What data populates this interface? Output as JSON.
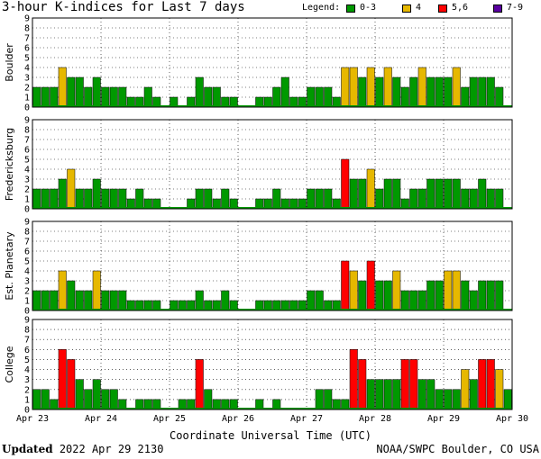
{
  "title": "3-hour K-indices for Last 7 days",
  "legend": {
    "label": "Legend:",
    "items": [
      {
        "text": "0-3",
        "color": "#009900"
      },
      {
        "text": "4",
        "color": "#e6b800"
      },
      {
        "text": "5,6",
        "color": "#ff0000"
      },
      {
        "text": "7-9",
        "color": "#5a00a0"
      }
    ]
  },
  "footer": {
    "updated_label": "Updated",
    "updated_value": "2022 Apr 29 2130",
    "source": "NOAA/SWPC Boulder, CO USA"
  },
  "chart_data": {
    "type": "bar",
    "xlabel": "Coordinate Universal Time (UTC)",
    "x_ticks": [
      "Apr 23",
      "Apr 24",
      "Apr 25",
      "Apr 26",
      "Apr 27",
      "Apr 28",
      "Apr 29",
      "Apr 30"
    ],
    "ylim": [
      0,
      9
    ],
    "y_ticks": [
      0,
      1,
      2,
      3,
      4,
      5,
      6,
      7,
      8,
      9
    ],
    "bins_per_day": 8,
    "color_scale": [
      {
        "range": [
          0,
          3
        ],
        "color": "#009900"
      },
      {
        "range": [
          4,
          4
        ],
        "color": "#e6b800"
      },
      {
        "range": [
          5,
          6
        ],
        "color": "#ff0000"
      },
      {
        "range": [
          7,
          9
        ],
        "color": "#5a00a0"
      }
    ],
    "panels": [
      {
        "name": "Boulder",
        "values": [
          2,
          2,
          2,
          4,
          3,
          3,
          2,
          3,
          2,
          2,
          2,
          1,
          1,
          2,
          1,
          0,
          1,
          0,
          1,
          3,
          2,
          2,
          1,
          1,
          0,
          0,
          1,
          1,
          2,
          3,
          1,
          1,
          2,
          2,
          2,
          1,
          4,
          4,
          3,
          4,
          3,
          4,
          3,
          2,
          3,
          4,
          3,
          3,
          3,
          4,
          2,
          3,
          3,
          3,
          2,
          0
        ]
      },
      {
        "name": "Fredericksburg",
        "values": [
          2,
          2,
          2,
          3,
          4,
          2,
          2,
          3,
          2,
          2,
          2,
          1,
          2,
          1,
          1,
          0,
          0,
          0,
          1,
          2,
          2,
          1,
          2,
          1,
          0,
          0,
          1,
          1,
          2,
          1,
          1,
          1,
          2,
          2,
          2,
          1,
          5,
          3,
          3,
          4,
          2,
          3,
          3,
          1,
          2,
          2,
          3,
          3,
          3,
          3,
          2,
          2,
          3,
          2,
          2,
          0
        ]
      },
      {
        "name": "Est. Planetary",
        "values": [
          2,
          2,
          2,
          4,
          3,
          2,
          2,
          4,
          2,
          2,
          2,
          1,
          1,
          1,
          1,
          0,
          1,
          1,
          1,
          2,
          1,
          1,
          2,
          1,
          0,
          0,
          1,
          1,
          1,
          1,
          1,
          1,
          2,
          2,
          1,
          1,
          5,
          4,
          3,
          5,
          3,
          3,
          4,
          2,
          2,
          2,
          3,
          3,
          4,
          4,
          3,
          2,
          3,
          3,
          3,
          0
        ]
      },
      {
        "name": "College",
        "values": [
          2,
          2,
          1,
          6,
          5,
          3,
          2,
          3,
          2,
          2,
          1,
          0,
          1,
          1,
          1,
          0,
          0,
          1,
          1,
          5,
          2,
          1,
          1,
          1,
          0,
          0,
          1,
          0,
          1,
          0,
          0,
          0,
          0,
          2,
          2,
          1,
          1,
          6,
          5,
          3,
          3,
          3,
          3,
          5,
          5,
          3,
          3,
          2,
          2,
          2,
          4,
          3,
          5,
          5,
          4,
          2
        ]
      }
    ]
  }
}
